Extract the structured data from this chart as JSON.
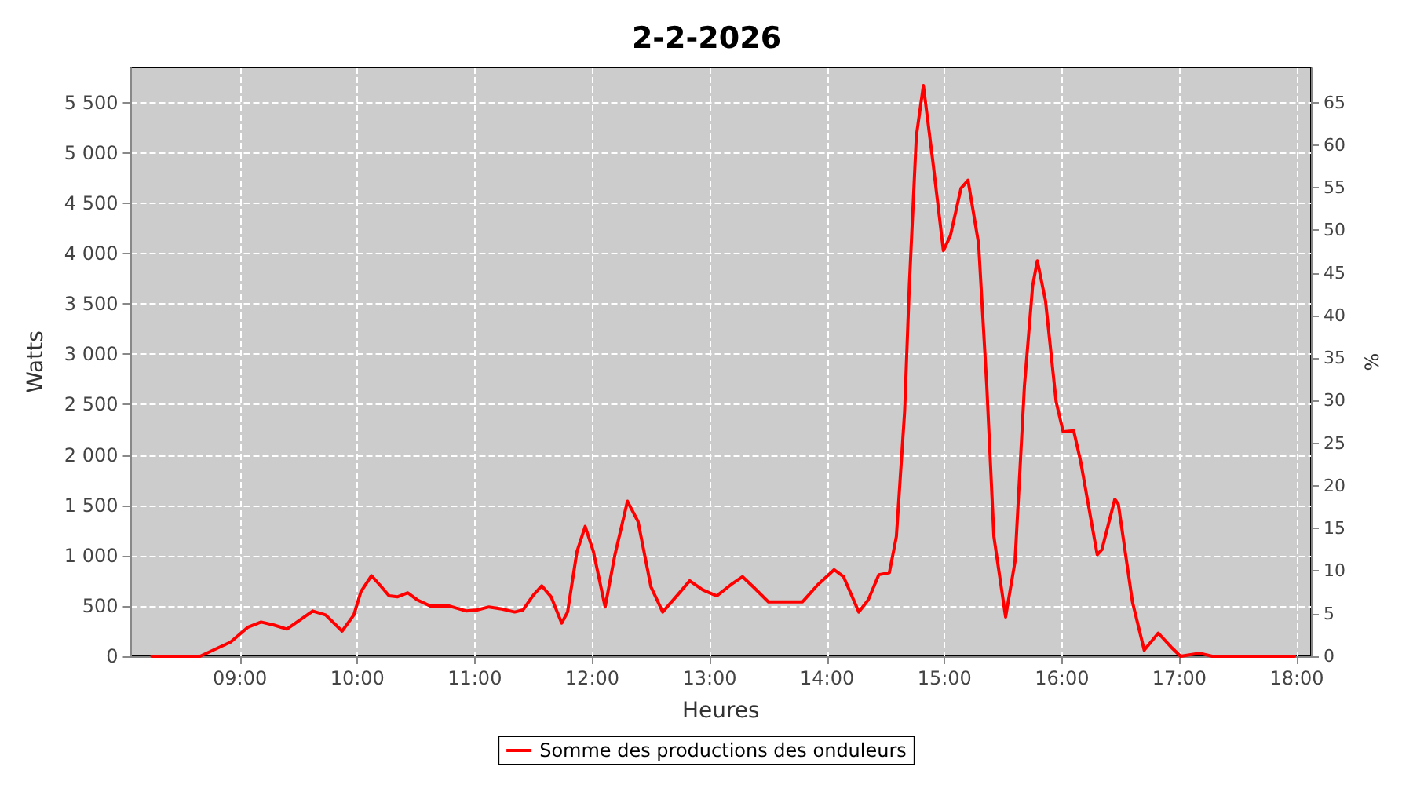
{
  "chart_data": {
    "type": "line",
    "title": "2-2-2026",
    "xlabel": "Heures",
    "ylabel": "Watts",
    "y2label": "%",
    "x": [
      8.25,
      8.66,
      8.92,
      9.07,
      9.18,
      9.29,
      9.4,
      9.62,
      9.73,
      9.87,
      9.97,
      10.03,
      10.12,
      10.19,
      10.27,
      10.34,
      10.43,
      10.51,
      10.62,
      10.78,
      10.93,
      11.02,
      11.12,
      11.23,
      11.34,
      11.41,
      11.5,
      11.57,
      11.65,
      11.74,
      11.79,
      11.87,
      11.94,
      12.01,
      12.11,
      12.19,
      12.3,
      12.39,
      12.5,
      12.6,
      12.72,
      12.83,
      12.94,
      13.06,
      13.18,
      13.28,
      13.37,
      13.5,
      13.79,
      13.92,
      14.06,
      14.14,
      14.27,
      14.35,
      14.44,
      14.53,
      14.59,
      14.66,
      14.7,
      14.76,
      14.82,
      14.9,
      14.99,
      15.05,
      15.14,
      15.2,
      15.29,
      15.36,
      15.42,
      15.52,
      15.6,
      15.68,
      15.75,
      15.79,
      15.86,
      15.95,
      16.01,
      16.1,
      16.16,
      16.3,
      16.34,
      16.45,
      16.48,
      16.6,
      16.7,
      16.82,
      16.93,
      17.01,
      17.17,
      17.28,
      17.98
    ],
    "series": [
      {
        "name": "Somme des productions des onduleurs",
        "color": "#ff0000",
        "values": [
          0,
          0,
          140,
          290,
          340,
          310,
          270,
          450,
          410,
          250,
          410,
          640,
          800,
          710,
          600,
          590,
          630,
          560,
          500,
          500,
          450,
          460,
          490,
          470,
          440,
          460,
          610,
          700,
          590,
          330,
          440,
          1040,
          1290,
          1040,
          490,
          990,
          1540,
          1340,
          690,
          440,
          600,
          750,
          660,
          600,
          710,
          790,
          690,
          540,
          540,
          710,
          860,
          790,
          440,
          560,
          810,
          830,
          1190,
          2430,
          3680,
          5170,
          5670,
          4920,
          4030,
          4180,
          4650,
          4730,
          4100,
          2680,
          1190,
          390,
          940,
          2680,
          3680,
          3930,
          3530,
          2530,
          2230,
          2240,
          1930,
          1010,
          1060,
          1560,
          1510,
          540,
          60,
          230,
          90,
          0,
          30,
          0,
          0
        ]
      }
    ],
    "xlim": [
      8.07,
      18.12
    ],
    "xticks": [
      {
        "value": 9,
        "label": "09:00"
      },
      {
        "value": 10,
        "label": "10:00"
      },
      {
        "value": 11,
        "label": "11:00"
      },
      {
        "value": 12,
        "label": "12:00"
      },
      {
        "value": 13,
        "label": "13:00"
      },
      {
        "value": 14,
        "label": "14:00"
      },
      {
        "value": 15,
        "label": "15:00"
      },
      {
        "value": 16,
        "label": "16:00"
      },
      {
        "value": 17,
        "label": "17:00"
      },
      {
        "value": 18,
        "label": "18:00"
      }
    ],
    "ylim": [
      0,
      5850
    ],
    "yticks": [
      0,
      500,
      {
        "value": 1000,
        "label": "1 000"
      },
      {
        "value": 1500,
        "label": "1 500"
      },
      {
        "value": 2000,
        "label": "2 000"
      },
      {
        "value": 2500,
        "label": "2 500"
      },
      {
        "value": 3000,
        "label": "3 000"
      },
      {
        "value": 3500,
        "label": "3 500"
      },
      {
        "value": 4000,
        "label": "4 000"
      },
      {
        "value": 4500,
        "label": "4 500"
      },
      {
        "value": 5000,
        "label": "5 000"
      },
      {
        "value": 5500,
        "label": "5 500"
      }
    ],
    "y2lim": [
      0,
      69.1
    ],
    "y2ticks": [
      0,
      5,
      10,
      15,
      20,
      25,
      30,
      35,
      40,
      45,
      50,
      55,
      60,
      65
    ],
    "grid": true,
    "legend": "bottom",
    "marker": "none",
    "line_style": "solid"
  }
}
